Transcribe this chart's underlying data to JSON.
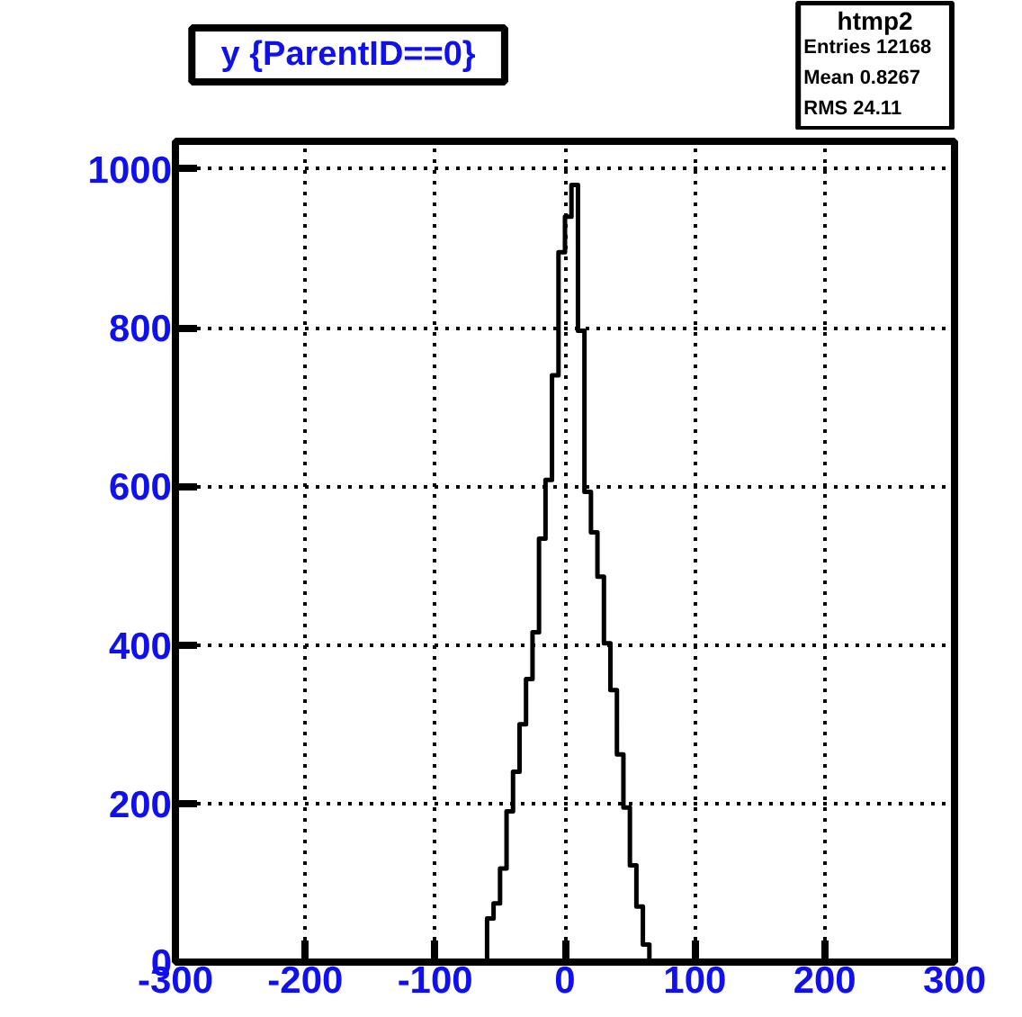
{
  "chart_data": {
    "type": "histogram",
    "title": "y {ParentID==0}",
    "annotations": [
      "htmp2",
      "Entries  12168",
      "Mean   0.8267",
      "RMS      24.11"
    ],
    "bins": [
      -60,
      -55,
      -50,
      -45,
      -40,
      -35,
      -30,
      -25,
      -20,
      -15,
      -10,
      -5,
      0,
      5,
      10,
      15,
      20,
      25,
      30,
      35,
      40,
      45,
      50,
      55,
      60,
      65
    ],
    "values": [
      55,
      74,
      118,
      190,
      240,
      300,
      357,
      416,
      534,
      608,
      740,
      895,
      940,
      980,
      796,
      593,
      542,
      486,
      402,
      343,
      262,
      195,
      122,
      70,
      22
    ],
    "color": "#000000",
    "xlim": [
      -300,
      300
    ],
    "ylim": [
      0,
      1035
    ],
    "xticks": [
      -300,
      -200,
      -100,
      0,
      100,
      200,
      300
    ],
    "yticks": [
      0,
      200,
      400,
      600,
      800,
      1000
    ],
    "grid": true
  }
}
